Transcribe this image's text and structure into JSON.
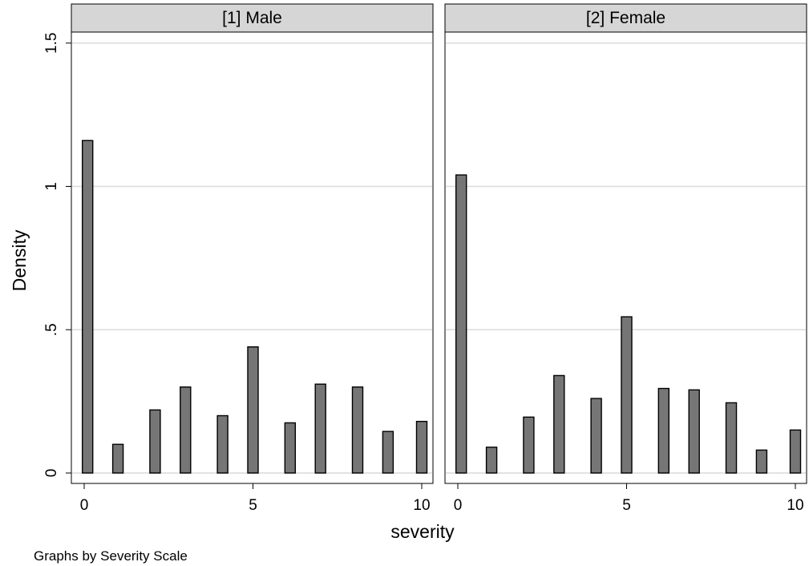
{
  "chart_data": {
    "type": "bar",
    "ylabel": "Density",
    "xlabel": "severity",
    "note": "Graphs by Severity Scale",
    "ylim": [
      0,
      1.55
    ],
    "xlim": [
      -0.5,
      10.5
    ],
    "yticks": [
      0,
      0.5,
      1,
      1.5
    ],
    "ytick_labels": [
      "0",
      ".5",
      "1",
      "1.5"
    ],
    "xticks": [
      0,
      5,
      10
    ],
    "xtick_labels": [
      "0",
      "5",
      "10"
    ],
    "grid": true,
    "bar_color": "#767676",
    "panel_header_color": "#d6d6d6",
    "x": [
      0.1,
      1,
      2.1,
      3,
      4.1,
      5,
      6.1,
      7,
      8.1,
      9,
      10
    ],
    "panels": [
      {
        "title": "[1] Male",
        "values": [
          1.16,
          0.1,
          0.22,
          0.3,
          0.2,
          0.44,
          0.175,
          0.31,
          0.3,
          0.145,
          0.18
        ]
      },
      {
        "title": "[2] Female",
        "values": [
          1.04,
          0.09,
          0.195,
          0.34,
          0.26,
          0.545,
          0.295,
          0.29,
          0.245,
          0.08,
          0.15
        ]
      }
    ]
  }
}
